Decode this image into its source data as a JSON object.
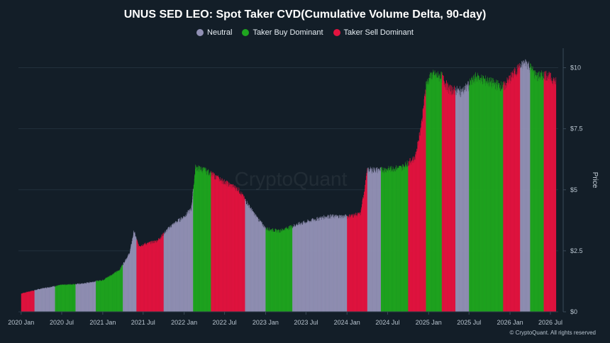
{
  "title": "UNUS SED LEO: Spot Taker CVD(Cumulative Volume Delta, 90-day)",
  "legend": [
    {
      "label": "Neutral",
      "color": "#9190b4"
    },
    {
      "label": "Taker Buy Dominant",
      "color": "#1fa51f"
    },
    {
      "label": "Taker Sell Dominant",
      "color": "#e3133f"
    }
  ],
  "watermark": "CryptoQuant",
  "credit": "© CryptoQuant. All rights reserved",
  "chart_data": {
    "type": "bar",
    "ylabel": "Price",
    "ylim": [
      0,
      10.8
    ],
    "y_ticks": [
      "$0",
      "$2.5",
      "$5",
      "$7.5",
      "$10"
    ],
    "y_tick_values": [
      0,
      2.5,
      5,
      7.5,
      10
    ],
    "x_ticks": [
      "2020 Jan",
      "2020 Jul",
      "2021 Jan",
      "2021 Jul",
      "2022 Jan",
      "2022 Jul",
      "2023 Jan",
      "2023 Jul",
      "2024 Jan",
      "2024 Jul",
      "2025 Jan",
      "2025 Jul",
      "2026 Jan",
      "2026 Jul"
    ],
    "x_tick_dates": [
      "2020-01-01",
      "2020-07-01",
      "2021-01-01",
      "2021-07-01",
      "2022-01-01",
      "2022-07-01",
      "2023-01-01",
      "2023-07-01",
      "2024-01-01",
      "2024-07-01",
      "2025-01-01",
      "2025-07-01",
      "2026-01-01",
      "2026-07-01"
    ],
    "x_range": [
      "2019-12-20",
      "2026-08-05"
    ],
    "grid": true,
    "legend_position": "top-center",
    "price_path": [
      {
        "date": "2020-01-01",
        "price": 0.75
      },
      {
        "date": "2020-04-01",
        "price": 0.95
      },
      {
        "date": "2020-07-01",
        "price": 1.1
      },
      {
        "date": "2020-10-01",
        "price": 1.15
      },
      {
        "date": "2021-01-01",
        "price": 1.3
      },
      {
        "date": "2021-03-15",
        "price": 1.7
      },
      {
        "date": "2021-05-01",
        "price": 2.4
      },
      {
        "date": "2021-05-20",
        "price": 3.3
      },
      {
        "date": "2021-06-10",
        "price": 2.7
      },
      {
        "date": "2021-09-01",
        "price": 2.9
      },
      {
        "date": "2021-11-01",
        "price": 3.5
      },
      {
        "date": "2022-01-01",
        "price": 3.9
      },
      {
        "date": "2022-02-01",
        "price": 4.2
      },
      {
        "date": "2022-02-20",
        "price": 5.9
      },
      {
        "date": "2022-04-01",
        "price": 5.8
      },
      {
        "date": "2022-07-01",
        "price": 5.3
      },
      {
        "date": "2022-09-01",
        "price": 5.0
      },
      {
        "date": "2022-11-10",
        "price": 4.0
      },
      {
        "date": "2023-01-01",
        "price": 3.4
      },
      {
        "date": "2023-03-01",
        "price": 3.3
      },
      {
        "date": "2023-06-01",
        "price": 3.6
      },
      {
        "date": "2023-10-01",
        "price": 3.9
      },
      {
        "date": "2024-01-01",
        "price": 3.9
      },
      {
        "date": "2024-03-01",
        "price": 4.0
      },
      {
        "date": "2024-04-01",
        "price": 5.8
      },
      {
        "date": "2024-06-01",
        "price": 5.8
      },
      {
        "date": "2024-09-01",
        "price": 5.9
      },
      {
        "date": "2024-11-01",
        "price": 6.3
      },
      {
        "date": "2024-12-01",
        "price": 7.8
      },
      {
        "date": "2024-12-20",
        "price": 9.3
      },
      {
        "date": "2025-01-15",
        "price": 9.7
      },
      {
        "date": "2025-03-01",
        "price": 9.6
      },
      {
        "date": "2025-04-01",
        "price": 9.1
      },
      {
        "date": "2025-06-01",
        "price": 9.0
      },
      {
        "date": "2025-08-01",
        "price": 9.6
      },
      {
        "date": "2025-10-01",
        "price": 9.4
      },
      {
        "date": "2025-12-01",
        "price": 9.2
      },
      {
        "date": "2026-02-01",
        "price": 9.9
      },
      {
        "date": "2026-03-15",
        "price": 10.2
      },
      {
        "date": "2026-05-01",
        "price": 9.6
      },
      {
        "date": "2026-06-10",
        "price": 9.7
      },
      {
        "date": "2026-07-25",
        "price": 9.4
      }
    ],
    "regimes": [
      {
        "start": "2020-01-01",
        "end": "2020-03-01",
        "state": "Taker Sell Dominant"
      },
      {
        "start": "2020-03-01",
        "end": "2020-06-01",
        "state": "Neutral"
      },
      {
        "start": "2020-06-01",
        "end": "2020-09-01",
        "state": "Taker Buy Dominant"
      },
      {
        "start": "2020-09-01",
        "end": "2020-12-01",
        "state": "Neutral"
      },
      {
        "start": "2020-12-01",
        "end": "2021-04-01",
        "state": "Taker Buy Dominant"
      },
      {
        "start": "2021-04-01",
        "end": "2021-06-01",
        "state": "Neutral"
      },
      {
        "start": "2021-06-01",
        "end": "2021-10-01",
        "state": "Taker Sell Dominant"
      },
      {
        "start": "2021-10-01",
        "end": "2022-02-10",
        "state": "Neutral"
      },
      {
        "start": "2022-02-10",
        "end": "2022-05-01",
        "state": "Taker Buy Dominant"
      },
      {
        "start": "2022-05-01",
        "end": "2022-10-01",
        "state": "Taker Sell Dominant"
      },
      {
        "start": "2022-10-01",
        "end": "2023-01-01",
        "state": "Neutral"
      },
      {
        "start": "2023-01-01",
        "end": "2023-05-01",
        "state": "Taker Buy Dominant"
      },
      {
        "start": "2023-05-01",
        "end": "2023-12-15",
        "state": "Neutral"
      },
      {
        "start": "2024-01-01",
        "end": "2024-04-01",
        "state": "Taker Sell Dominant"
      },
      {
        "start": "2024-04-01",
        "end": "2024-06-01",
        "state": "Neutral"
      },
      {
        "start": "2024-06-01",
        "end": "2024-10-01",
        "state": "Taker Buy Dominant"
      },
      {
        "start": "2024-10-01",
        "end": "2024-12-20",
        "state": "Taker Sell Dominant"
      },
      {
        "start": "2024-12-20",
        "end": "2025-03-01",
        "state": "Taker Buy Dominant"
      },
      {
        "start": "2025-03-01",
        "end": "2025-05-01",
        "state": "Taker Sell Dominant"
      },
      {
        "start": "2025-05-01",
        "end": "2025-07-01",
        "state": "Neutral"
      },
      {
        "start": "2025-07-01",
        "end": "2025-12-01",
        "state": "Taker Buy Dominant"
      },
      {
        "start": "2025-12-01",
        "end": "2026-02-15",
        "state": "Taker Sell Dominant"
      },
      {
        "start": "2026-02-15",
        "end": "2026-04-01",
        "state": "Neutral"
      },
      {
        "start": "2026-04-01",
        "end": "2026-06-01",
        "state": "Taker Buy Dominant"
      },
      {
        "start": "2026-06-01",
        "end": "2026-07-31",
        "state": "Taker Sell Dominant"
      }
    ]
  }
}
